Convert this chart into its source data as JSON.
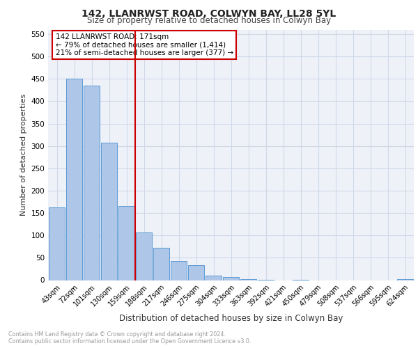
{
  "title1": "142, LLANRWST ROAD, COLWYN BAY, LL28 5YL",
  "title2": "Size of property relative to detached houses in Colwyn Bay",
  "xlabel": "Distribution of detached houses by size in Colwyn Bay",
  "ylabel": "Number of detached properties",
  "footer1": "Contains HM Land Registry data © Crown copyright and database right 2024.",
  "footer2": "Contains public sector information licensed under the Open Government Licence v3.0.",
  "bar_labels": [
    "43sqm",
    "72sqm",
    "101sqm",
    "130sqm",
    "159sqm",
    "188sqm",
    "217sqm",
    "246sqm",
    "275sqm",
    "304sqm",
    "333sqm",
    "363sqm",
    "392sqm",
    "421sqm",
    "450sqm",
    "479sqm",
    "508sqm",
    "537sqm",
    "566sqm",
    "595sqm",
    "624sqm"
  ],
  "bar_values": [
    163,
    450,
    435,
    307,
    165,
    107,
    73,
    43,
    33,
    10,
    7,
    2,
    1,
    0,
    1,
    0,
    0,
    0,
    0,
    0,
    3
  ],
  "bar_color": "#aec6e8",
  "bar_edgecolor": "#5b9bd5",
  "vline_color": "#cc0000",
  "annotation_text": "142 LLANRWST ROAD: 171sqm\n← 79% of detached houses are smaller (1,414)\n21% of semi-detached houses are larger (377) →",
  "annotation_box_edgecolor": "#cc0000",
  "ylim": [
    0,
    560
  ],
  "yticks": [
    0,
    50,
    100,
    150,
    200,
    250,
    300,
    350,
    400,
    450,
    500,
    550
  ],
  "grid_color": "#d0d8e8",
  "background_color": "#eef2f8"
}
